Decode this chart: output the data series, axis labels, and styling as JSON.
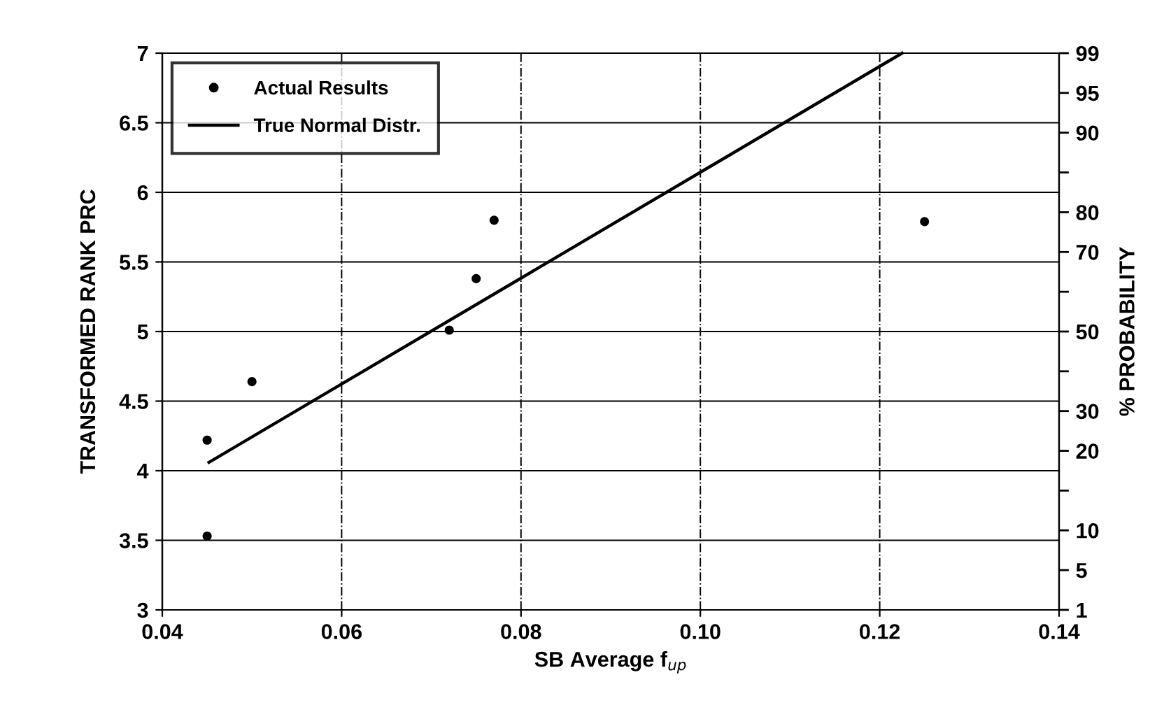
{
  "chart_data": {
    "type": "scatter",
    "xlabel": "SB Average f$_{up}$",
    "ylabel": "TRANSFORMED RANK PRC",
    "y2label": "% PROBABILITY",
    "series": [
      {
        "name": "Actual Results",
        "color": "#000000",
        "marker": "circle",
        "x": [
          0.045,
          0.045,
          0.05,
          0.072,
          0.075,
          0.077,
          0.125
        ],
        "values": [
          3.53,
          4.22,
          4.64,
          5.01,
          5.38,
          5.8,
          5.79
        ]
      },
      {
        "name": "True Normal Distr.",
        "type": "line",
        "color": "#000000",
        "line_style": "solid",
        "x": [
          0.0452,
          0.1225
        ],
        "values": [
          4.06,
          7.0
        ]
      }
    ],
    "xlim": [
      0.04,
      0.14
    ],
    "xticks": [
      {
        "value": 0.04,
        "label": "0.04"
      },
      {
        "value": 0.06,
        "label": "0.06"
      },
      {
        "value": 0.08,
        "label": "0.08"
      },
      {
        "value": 0.1,
        "label": "0.10"
      },
      {
        "value": 0.12,
        "label": "0.12"
      },
      {
        "value": 0.14,
        "label": "0.14"
      }
    ],
    "ylim": [
      3,
      7
    ],
    "yticks": [
      3,
      3.5,
      4,
      4.5,
      5,
      5.5,
      6,
      6.5,
      7
    ],
    "y2_categories": [
      "99",
      "95",
      "90",
      null,
      "80",
      "70",
      null,
      "50",
      null,
      "30",
      "20",
      null,
      "10",
      "5",
      "1"
    ],
    "grid": true,
    "legend": "top left"
  }
}
